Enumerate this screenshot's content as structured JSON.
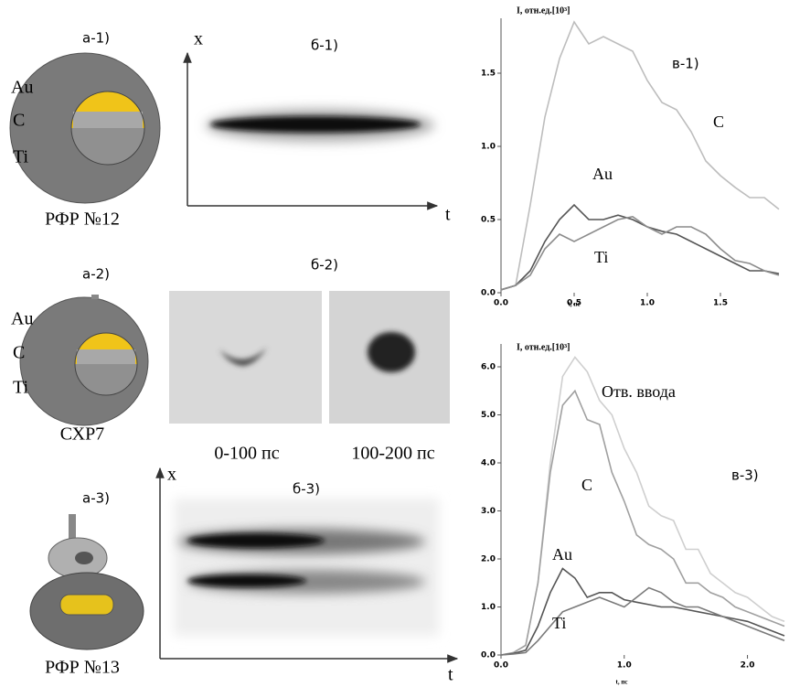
{
  "panels": {
    "a1": {
      "label": "а-1)",
      "materials": [
        "Au",
        "C",
        "Ti"
      ],
      "caption": "РФР №12"
    },
    "a2": {
      "label": "а-2)",
      "materials": [
        "Au",
        "C",
        "Ti"
      ],
      "caption": "СХР7"
    },
    "a3": {
      "label": "а-3)",
      "caption": "РФР №13"
    },
    "b1": {
      "label": "б-1)",
      "x_axis": "x",
      "t_axis": "t"
    },
    "b2": {
      "label": "б-2)",
      "captions": [
        "0-100 пс",
        "100-200 пс"
      ]
    },
    "b3": {
      "label": "б-3)",
      "x_axis": "x",
      "t_axis": "t"
    }
  },
  "chart_data": [
    {
      "type": "line",
      "title": "I, отн.ед.[10³]",
      "x_label": "t, пс",
      "annotation": "в-1)",
      "x": [
        0,
        0.1,
        0.2,
        0.3,
        0.4,
        0.5,
        0.6,
        0.7,
        0.8,
        0.9,
        1.0,
        1.1,
        1.2,
        1.3,
        1.4,
        1.5,
        1.6,
        1.7,
        1.8,
        1.9
      ],
      "series": [
        {
          "name": "C",
          "color": "#bdbdbd",
          "values": [
            0.02,
            0.05,
            0.6,
            1.2,
            1.6,
            1.85,
            1.7,
            1.75,
            1.7,
            1.65,
            1.45,
            1.3,
            1.25,
            1.1,
            0.9,
            0.8,
            0.72,
            0.65,
            0.65,
            0.57
          ]
        },
        {
          "name": "Au",
          "color": "#555555",
          "values": [
            0.02,
            0.05,
            0.15,
            0.35,
            0.5,
            0.6,
            0.5,
            0.5,
            0.53,
            0.5,
            0.45,
            0.42,
            0.4,
            0.35,
            0.3,
            0.25,
            0.2,
            0.15,
            0.15,
            0.13
          ]
        },
        {
          "name": "Ti",
          "color": "#8c8c8c",
          "values": [
            0.02,
            0.05,
            0.12,
            0.3,
            0.4,
            0.35,
            0.4,
            0.45,
            0.5,
            0.52,
            0.45,
            0.4,
            0.45,
            0.45,
            0.4,
            0.3,
            0.22,
            0.2,
            0.15,
            0.12
          ]
        }
      ],
      "xlim": [
        0,
        1.95
      ],
      "ylim": [
        0,
        1.85
      ],
      "xticks": [
        {
          "value": 0,
          "label": "0.0"
        },
        {
          "value": 0.5,
          "label": "0.5"
        },
        {
          "value": 1,
          "label": "1.0"
        },
        {
          "value": 1.5,
          "label": "1.5"
        }
      ],
      "yticks": [
        {
          "value": 0,
          "label": "0.0"
        },
        {
          "value": 0.5,
          "label": "0.5"
        },
        {
          "value": 1,
          "label": "1.0"
        },
        {
          "value": 1.5,
          "label": "1.5"
        }
      ]
    },
    {
      "type": "line",
      "title": "I, отн.ед.[10³]",
      "x_label": "t, пс",
      "annotation": "в-3)",
      "x": [
        0,
        0.1,
        0.2,
        0.3,
        0.4,
        0.5,
        0.6,
        0.7,
        0.8,
        0.9,
        1.0,
        1.1,
        1.2,
        1.3,
        1.4,
        1.5,
        1.6,
        1.7,
        1.8,
        1.9,
        2.0,
        2.1,
        2.2,
        2.3
      ],
      "series": [
        {
          "name": "Отв. ввода",
          "color": "#cfcfcf",
          "values": [
            0,
            0.05,
            0.2,
            1.5,
            4.0,
            5.8,
            6.2,
            5.9,
            5.3,
            5.0,
            4.3,
            3.8,
            3.1,
            2.9,
            2.8,
            2.2,
            2.2,
            1.7,
            1.5,
            1.3,
            1.2,
            1.0,
            0.8,
            0.7
          ]
        },
        {
          "name": "C",
          "color": "#a0a0a0",
          "values": [
            0,
            0.05,
            0.2,
            1.5,
            3.8,
            5.2,
            5.5,
            4.9,
            4.8,
            3.8,
            3.2,
            2.5,
            2.3,
            2.2,
            2.0,
            1.5,
            1.5,
            1.3,
            1.2,
            1.0,
            0.9,
            0.8,
            0.7,
            0.6
          ]
        },
        {
          "name": "Au",
          "color": "#555555",
          "values": [
            0,
            0.03,
            0.1,
            0.6,
            1.3,
            1.8,
            1.6,
            1.2,
            1.3,
            1.3,
            1.15,
            1.1,
            1.05,
            1.0,
            1.0,
            0.95,
            0.9,
            0.85,
            0.8,
            0.75,
            0.7,
            0.6,
            0.5,
            0.4
          ]
        },
        {
          "name": "Ti",
          "color": "#7a7a7a",
          "values": [
            0,
            0.02,
            0.05,
            0.3,
            0.6,
            0.9,
            1.0,
            1.1,
            1.2,
            1.1,
            1.0,
            1.2,
            1.4,
            1.3,
            1.1,
            1.0,
            1.0,
            0.9,
            0.8,
            0.7,
            0.6,
            0.5,
            0.4,
            0.3
          ]
        }
      ],
      "xlim": [
        0,
        2.3
      ],
      "ylim": [
        0,
        6.4
      ],
      "xticks": [
        {
          "value": 0,
          "label": "0.0"
        },
        {
          "value": 1,
          "label": "1.0"
        },
        {
          "value": 2,
          "label": "2.0"
        }
      ],
      "yticks": [
        {
          "value": 0,
          "label": "0.0"
        },
        {
          "value": 1,
          "label": "1.0"
        },
        {
          "value": 2,
          "label": "2.0"
        },
        {
          "value": 3,
          "label": "3.0"
        },
        {
          "value": 4,
          "label": "4.0"
        },
        {
          "value": 5,
          "label": "5.0"
        },
        {
          "value": 6,
          "label": "6.0"
        }
      ]
    }
  ]
}
